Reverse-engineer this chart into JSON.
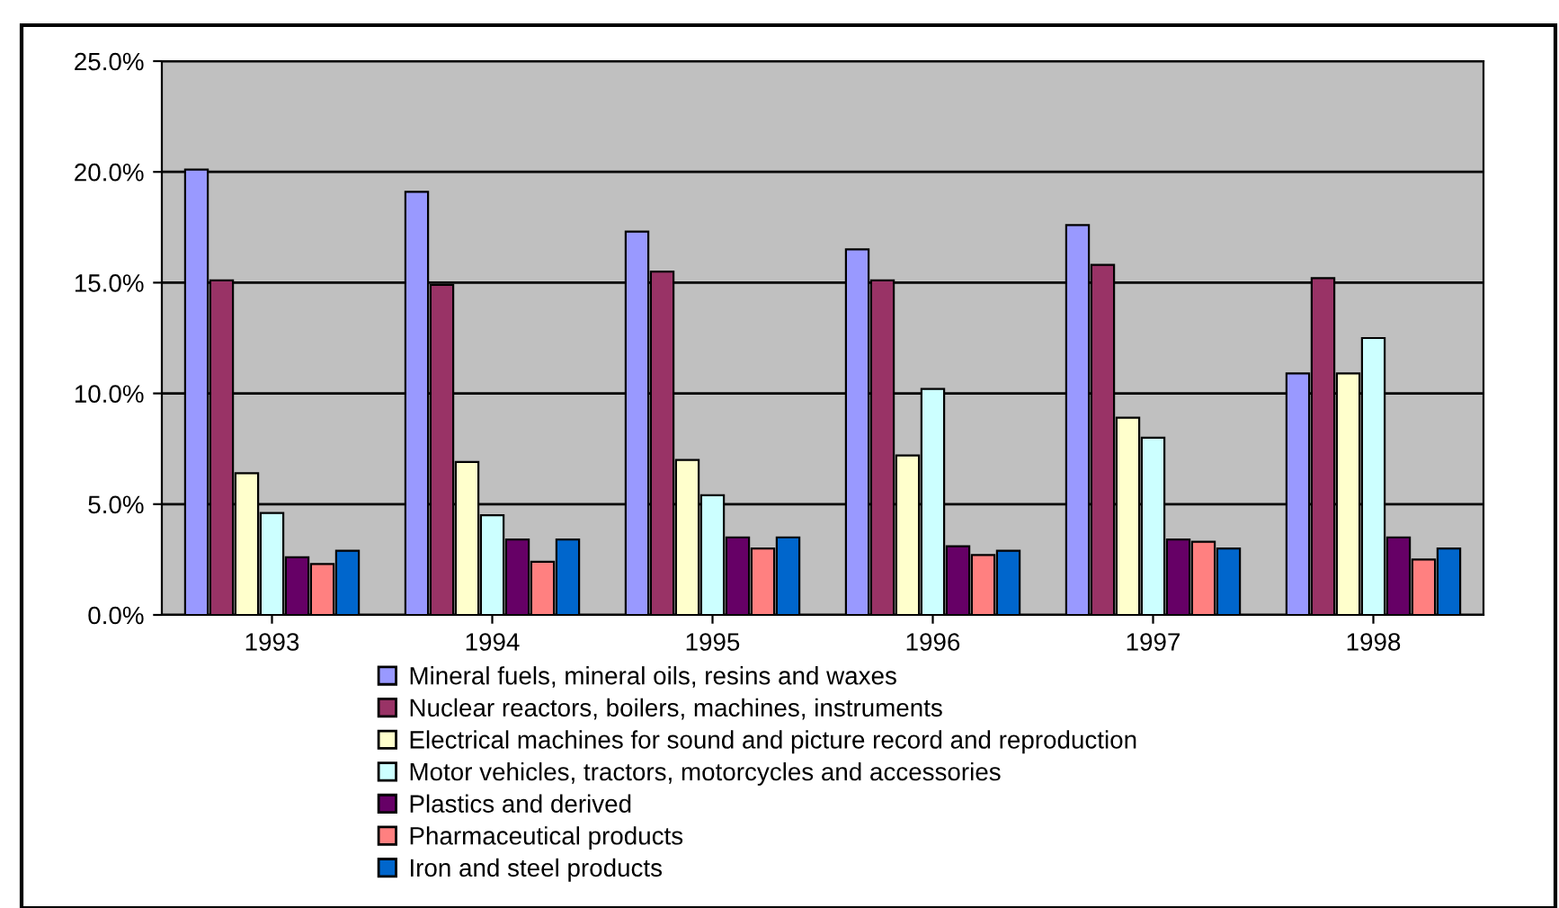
{
  "chart_data": {
    "type": "bar",
    "categories": [
      "1993",
      "1994",
      "1995",
      "1996",
      "1997",
      "1998"
    ],
    "ylim": [
      0,
      25
    ],
    "yticks": [
      {
        "value": 0,
        "label": "0.0%"
      },
      {
        "value": 5,
        "label": "5.0%"
      },
      {
        "value": 10,
        "label": "10.0%"
      },
      {
        "value": 15,
        "label": "15.0%"
      },
      {
        "value": 20,
        "label": "20.0%"
      },
      {
        "value": 25,
        "label": "25.0%"
      }
    ],
    "grid": "y",
    "legend": "bottom",
    "series": [
      {
        "name": "Mineral fuels, mineral oils, resins and waxes",
        "color": "#9999ff",
        "values": [
          20.1,
          19.1,
          17.3,
          16.5,
          17.6,
          10.9
        ]
      },
      {
        "name": "Nuclear reactors, boilers, machines, instruments",
        "color": "#993366",
        "values": [
          15.1,
          14.9,
          15.5,
          15.1,
          15.8,
          15.2
        ]
      },
      {
        "name": "Electrical machines for sound and picture record and reproduction",
        "color": "#ffffcc",
        "values": [
          6.4,
          6.9,
          7.0,
          7.2,
          8.9,
          10.9
        ]
      },
      {
        "name": "Motor vehicles, tractors, motorcycles and accessories",
        "color": "#ccffff",
        "values": [
          4.6,
          4.5,
          5.4,
          10.2,
          8.0,
          12.5
        ]
      },
      {
        "name": "Plastics and derived",
        "color": "#660066",
        "values": [
          2.6,
          3.4,
          3.5,
          3.1,
          3.4,
          3.5
        ]
      },
      {
        "name": "Pharmaceutical products",
        "color": "#ff8080",
        "values": [
          2.3,
          2.4,
          3.0,
          2.7,
          3.3,
          2.5
        ]
      },
      {
        "name": "Iron and steel products",
        "color": "#0066cc",
        "values": [
          2.9,
          3.4,
          3.5,
          2.9,
          3.0,
          3.0
        ]
      }
    ]
  }
}
